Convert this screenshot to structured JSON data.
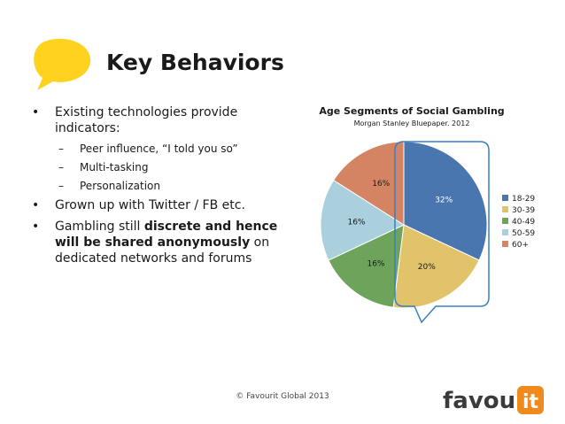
{
  "slide": {
    "title": "Key Behaviors",
    "footer": "© Favourit Global 2013"
  },
  "bullets": [
    {
      "text": "Existing technologies provide indicators:",
      "sub": [
        "Peer influence, “I told you so”",
        "Multi-tasking",
        "Personalization"
      ]
    },
    {
      "text": "Grown up with Twitter / FB etc."
    },
    {
      "text_parts": [
        "Gambling still ",
        "discrete and hence will be shared anonymously",
        " on dedicated networks and forums"
      ]
    }
  ],
  "logo": {
    "text_main": "favour",
    "text_box": "it"
  },
  "colors": {
    "bubble": "#FFD21F",
    "highlight": "#3A7FC4",
    "logo_dark": "#3a3a3a",
    "logo_orange": "#F08A1C"
  },
  "icons": {
    "bubble": "speech-bubble-icon"
  },
  "chart_data": {
    "type": "pie",
    "title": "Age Segments of Social Gambling",
    "subtitle": "Morgan Stanley Bluepaper. 2012",
    "legend_position": "right",
    "categories": [
      "18-29",
      "30-39",
      "40-49",
      "50-59",
      "60+"
    ],
    "values": [
      32,
      20,
      16,
      16,
      16
    ],
    "labels": [
      "32%",
      "20%",
      "16%",
      "16%",
      "16%"
    ],
    "colors": [
      "#4A76B0",
      "#E1C36A",
      "#6EA35B",
      "#A9D0DC",
      "#D48462"
    ],
    "highlighted_category": "18-29"
  }
}
